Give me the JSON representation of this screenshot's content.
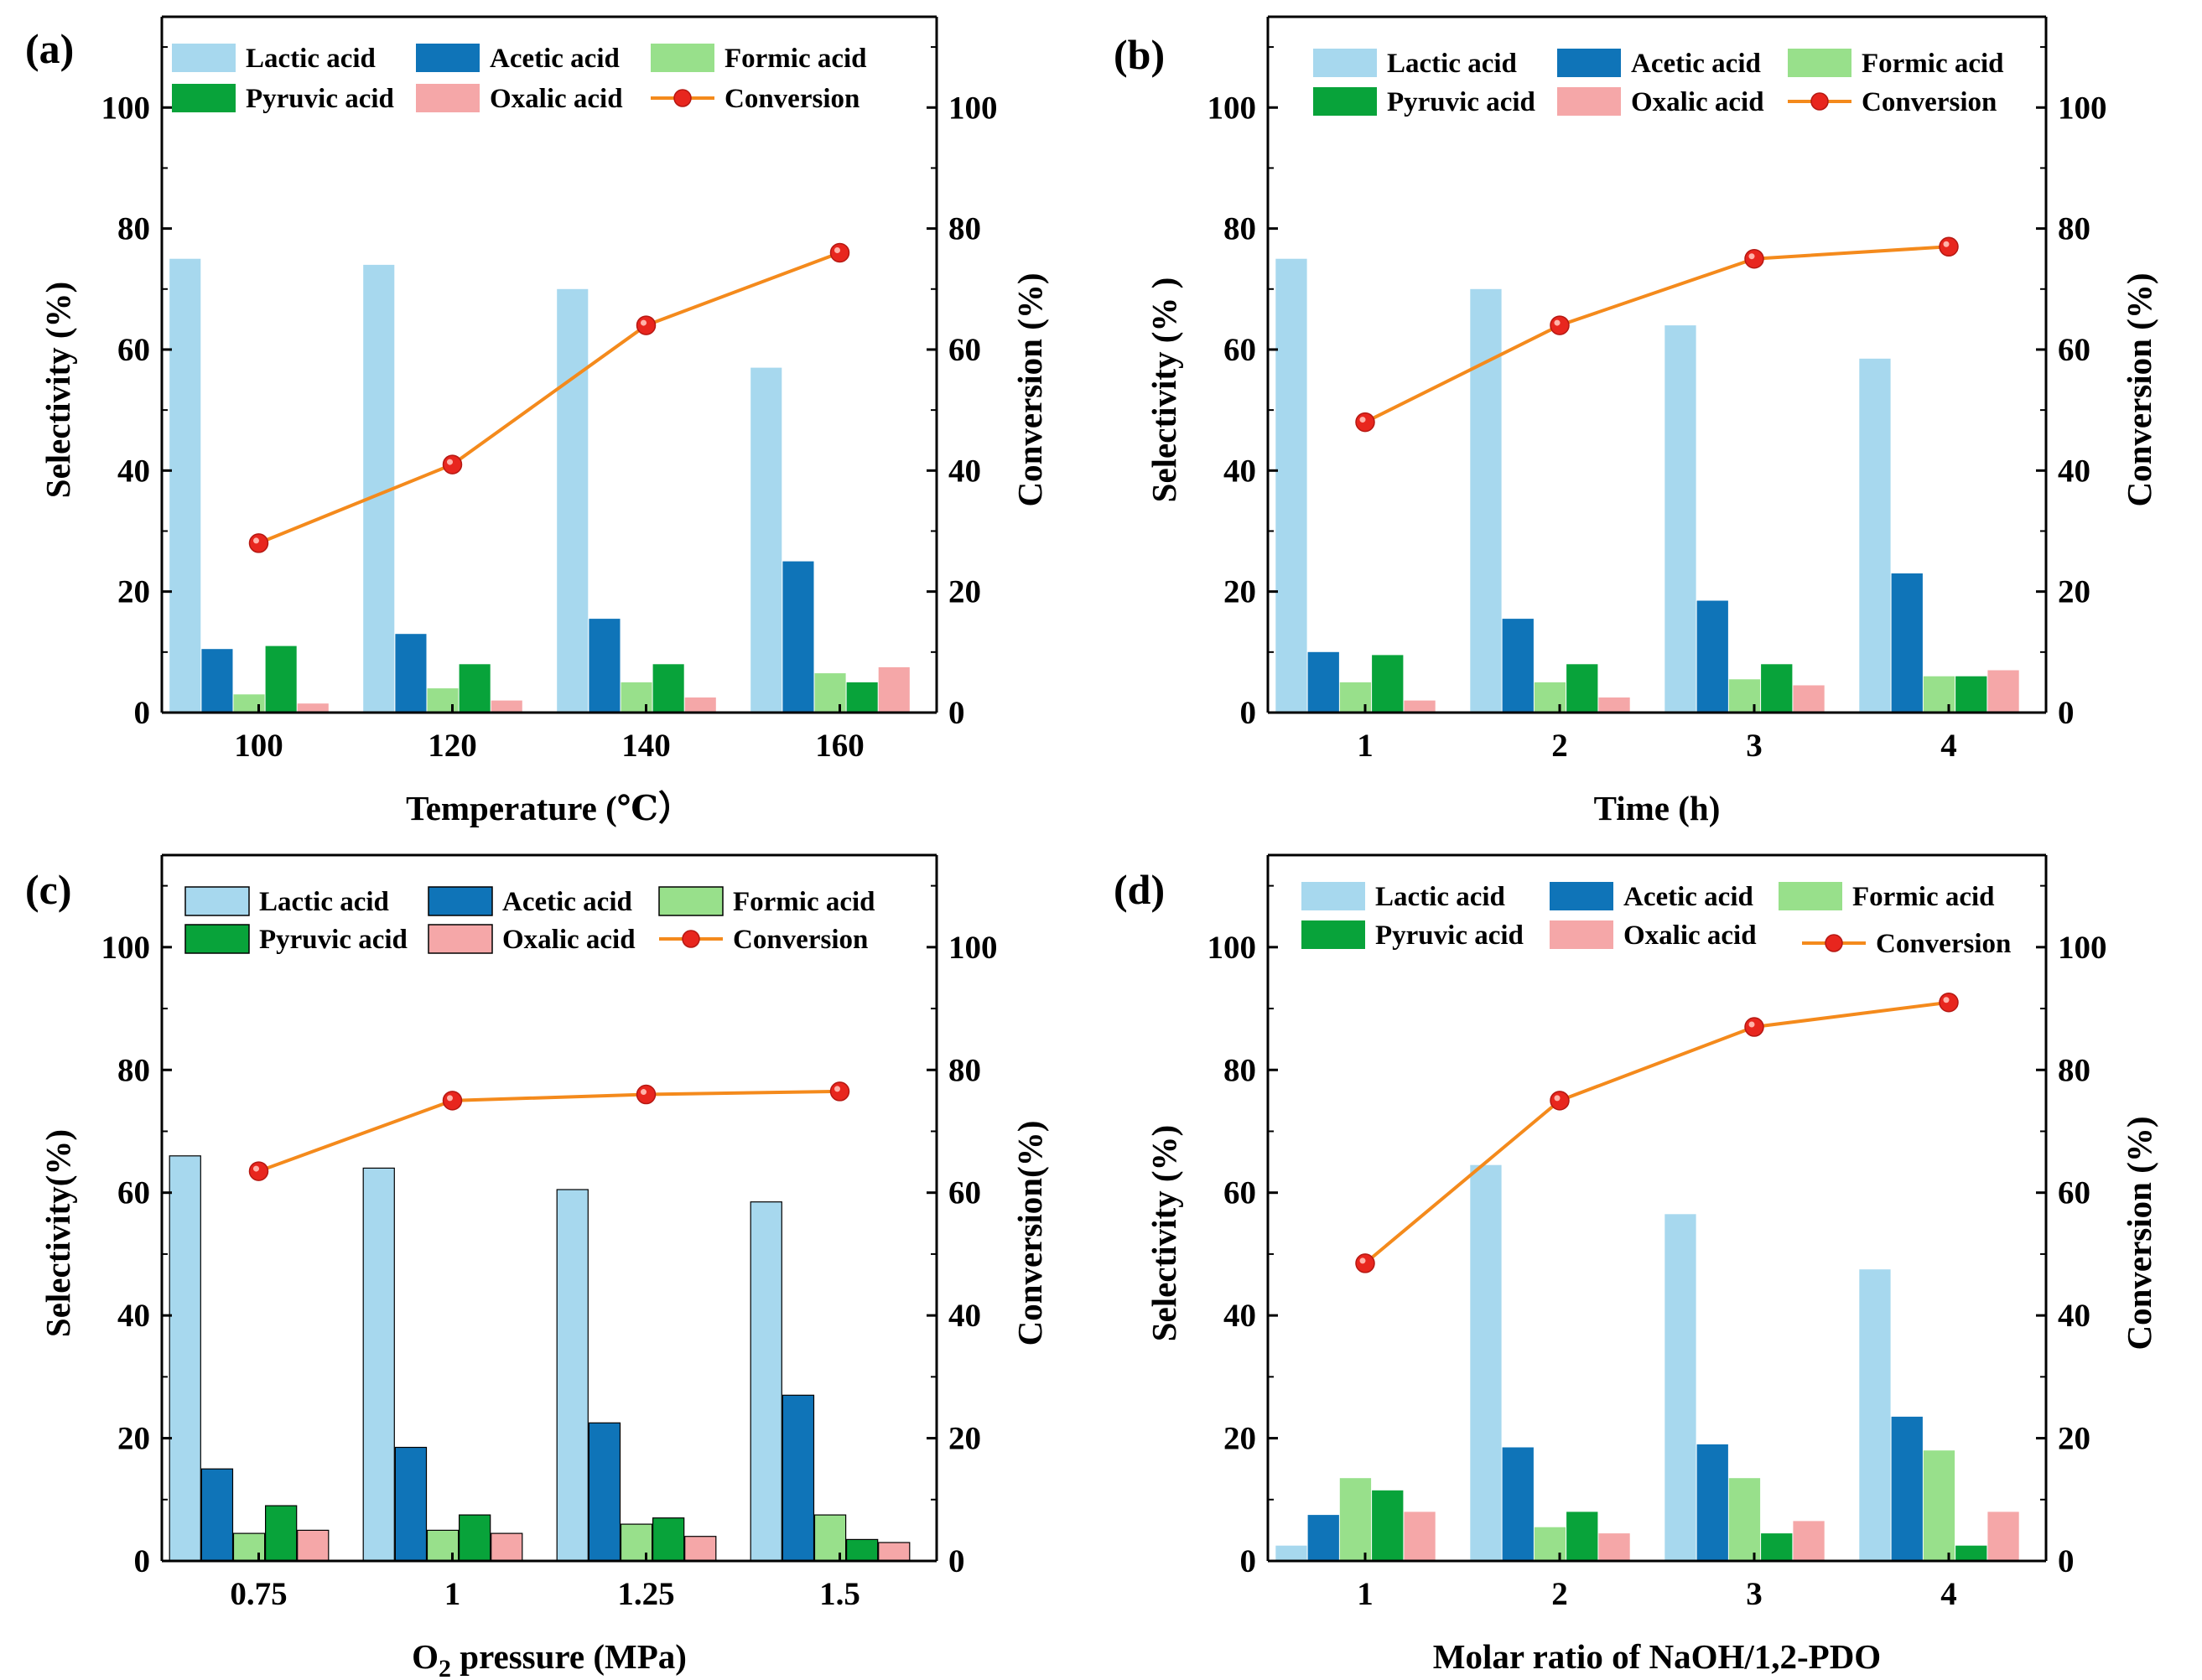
{
  "figure": {
    "series_names": [
      "Lactic acid",
      "Acetic acid",
      "Formic acid",
      "Pyruvic acid",
      "Oxalic acid",
      "Conversion"
    ],
    "colors": {
      "lactic": "#A7D8EE",
      "acetic": "#0F74B8",
      "formic": "#98E08B",
      "pyruvic": "#08A33A",
      "oxalic": "#F5A7A8",
      "conversion_line": "#F48A1C",
      "conversion_marker": "#E8261E"
    }
  },
  "chart_data": [
    {
      "id": "a",
      "panel_label": "(a)",
      "type": "bar",
      "xlabel": "Temperature (℃）",
      "ylabel": "Selectivity (%)",
      "y2label": "Conversion (%)",
      "categories": [
        "100",
        "120",
        "140",
        "160"
      ],
      "ylim": [
        0,
        115
      ],
      "y_ticks": [
        "0",
        "20",
        "40",
        "60",
        "80",
        "100"
      ],
      "series": [
        {
          "name": "Lactic acid",
          "values": [
            75,
            74,
            70,
            57
          ]
        },
        {
          "name": "Acetic acid",
          "values": [
            10.5,
            13,
            15.5,
            25
          ]
        },
        {
          "name": "Formic acid",
          "values": [
            3,
            4,
            5,
            6.5
          ]
        },
        {
          "name": "Pyruvic acid",
          "values": [
            11,
            8,
            8,
            5
          ]
        },
        {
          "name": "Oxalic acid",
          "values": [
            1.5,
            2,
            2.5,
            7.5
          ]
        }
      ],
      "conversion": [
        28,
        41,
        64,
        76
      ]
    },
    {
      "id": "b",
      "panel_label": "(b)",
      "type": "bar",
      "xlabel": "Time (h)",
      "ylabel": "Selectivity (% )",
      "y2label": "Conversion (%)",
      "categories": [
        "1",
        "2",
        "3",
        "4"
      ],
      "ylim": [
        0,
        115
      ],
      "y_ticks": [
        "0",
        "20",
        "40",
        "60",
        "80",
        "100"
      ],
      "series": [
        {
          "name": "Lactic acid",
          "values": [
            75,
            70,
            64,
            58.5
          ]
        },
        {
          "name": "Acetic acid",
          "values": [
            10,
            15.5,
            18.5,
            23
          ]
        },
        {
          "name": "Formic acid",
          "values": [
            5,
            5,
            5.5,
            6
          ]
        },
        {
          "name": "Pyruvic acid",
          "values": [
            9.5,
            8,
            8,
            6
          ]
        },
        {
          "name": "Oxalic acid",
          "values": [
            2,
            2.5,
            4.5,
            7
          ]
        }
      ],
      "conversion": [
        48,
        64,
        75,
        77
      ]
    },
    {
      "id": "c",
      "panel_label": "(c)",
      "type": "bar",
      "xlabel": "O2 pressure (MPa)",
      "ylabel": "Selectivity(%)",
      "y2label": "Conversion(%)",
      "categories": [
        "0.75",
        "1",
        "1.25",
        "1.5"
      ],
      "ylim": [
        0,
        115
      ],
      "y_ticks": [
        "0",
        "20",
        "40",
        "60",
        "80",
        "100"
      ],
      "series": [
        {
          "name": "Lactic acid",
          "values": [
            66,
            64,
            60.5,
            58.5
          ]
        },
        {
          "name": "Acetic acid",
          "values": [
            15,
            18.5,
            22.5,
            27
          ]
        },
        {
          "name": "Formic acid",
          "values": [
            4.5,
            5,
            6,
            7.5
          ]
        },
        {
          "name": "Pyruvic acid",
          "values": [
            9,
            7.5,
            7,
            3.5
          ]
        },
        {
          "name": "Oxalic acid",
          "values": [
            5,
            4.5,
            4,
            3
          ]
        }
      ],
      "conversion": [
        63.5,
        75,
        76,
        76.5
      ]
    },
    {
      "id": "d",
      "panel_label": "(d)",
      "type": "bar",
      "xlabel": "Molar ratio of NaOH/1,2-PDO",
      "ylabel": "Selectivity (%)",
      "y2label": "Conversion (%)",
      "categories": [
        "1",
        "2",
        "3",
        "4"
      ],
      "ylim": [
        0,
        115
      ],
      "y_ticks": [
        "0",
        "20",
        "40",
        "60",
        "80",
        "100"
      ],
      "series": [
        {
          "name": "Lactic acid",
          "values": [
            2.5,
            64.5,
            56.5,
            47.5
          ]
        },
        {
          "name": "Acetic acid",
          "values": [
            7.5,
            18.5,
            19,
            23.5
          ]
        },
        {
          "name": "Formic acid",
          "values": [
            13.5,
            5.5,
            13.5,
            18
          ]
        },
        {
          "name": "Pyruvic acid",
          "values": [
            11.5,
            8,
            4.5,
            2.5
          ]
        },
        {
          "name": "Oxalic acid",
          "values": [
            8,
            4.5,
            6.5,
            8
          ]
        }
      ],
      "conversion": [
        48.5,
        75,
        87,
        91
      ]
    }
  ]
}
